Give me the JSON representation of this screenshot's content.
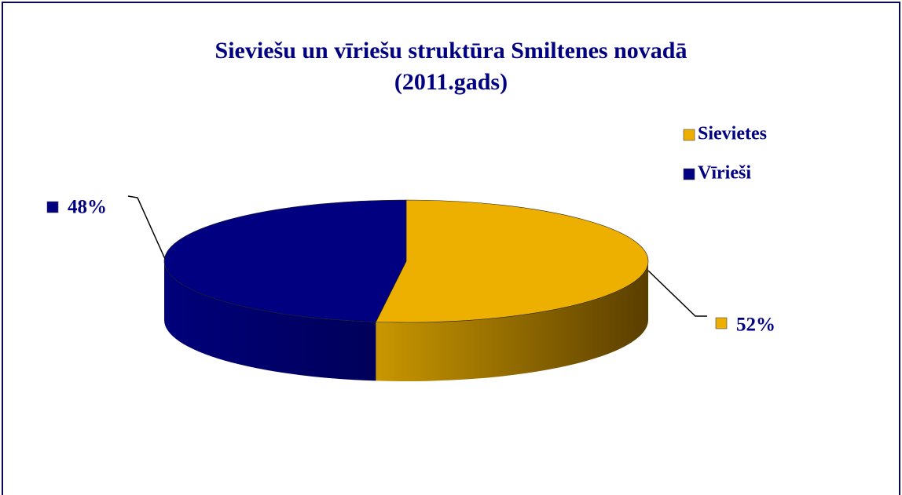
{
  "chart_data": {
    "type": "pie",
    "title": [
      "Sieviešu un vīriešu struktūra Smiltenes novadā",
      "(2011.gads)"
    ],
    "categories": [
      "Sievietes",
      "Vīrieši"
    ],
    "values": [
      52,
      48
    ],
    "value_labels": [
      "52%",
      "48%"
    ],
    "colors": [
      "#EEB000",
      "#000080"
    ],
    "legend": "right"
  }
}
